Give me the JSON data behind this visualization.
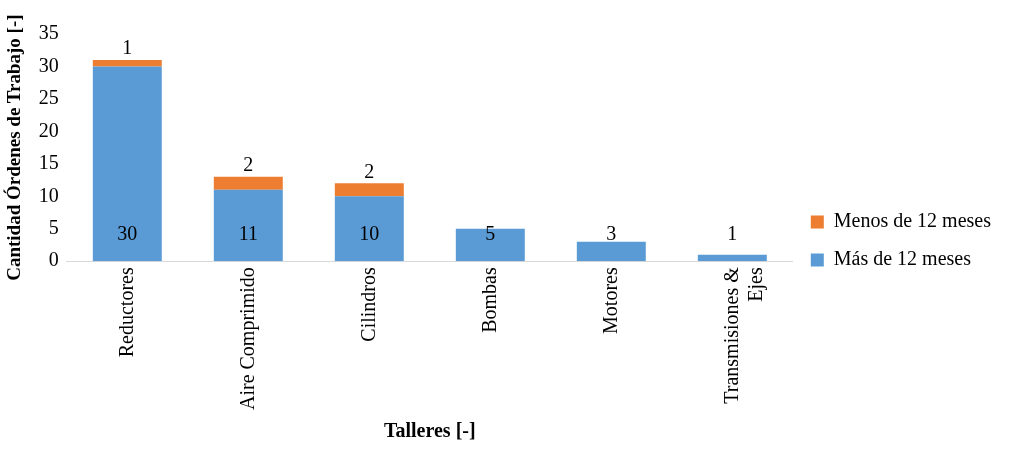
{
  "chart_data": {
    "type": "bar",
    "stacked": true,
    "xlabel": "Talleres [-]",
    "ylabel": "Cantidad Órdenes de Trabajo [-]",
    "categories": [
      "Reductores",
      "Aire Comprimido",
      "Cilindros",
      "Bombas",
      "Motores",
      "Transmisiones & Ejes"
    ],
    "series": [
      {
        "name": "Más de 12 meses",
        "color": "#5b9bd5",
        "values": [
          30,
          11,
          10,
          5,
          3,
          1
        ]
      },
      {
        "name": "Menos de 12 meses",
        "color": "#ed7d31",
        "values": [
          1,
          2,
          2,
          null,
          null,
          null
        ]
      }
    ],
    "ylim": [
      0,
      35
    ],
    "yticks": [
      0,
      5,
      10,
      15,
      20,
      25,
      30,
      35
    ],
    "grid": false,
    "legend": "right",
    "data_labels": true
  }
}
